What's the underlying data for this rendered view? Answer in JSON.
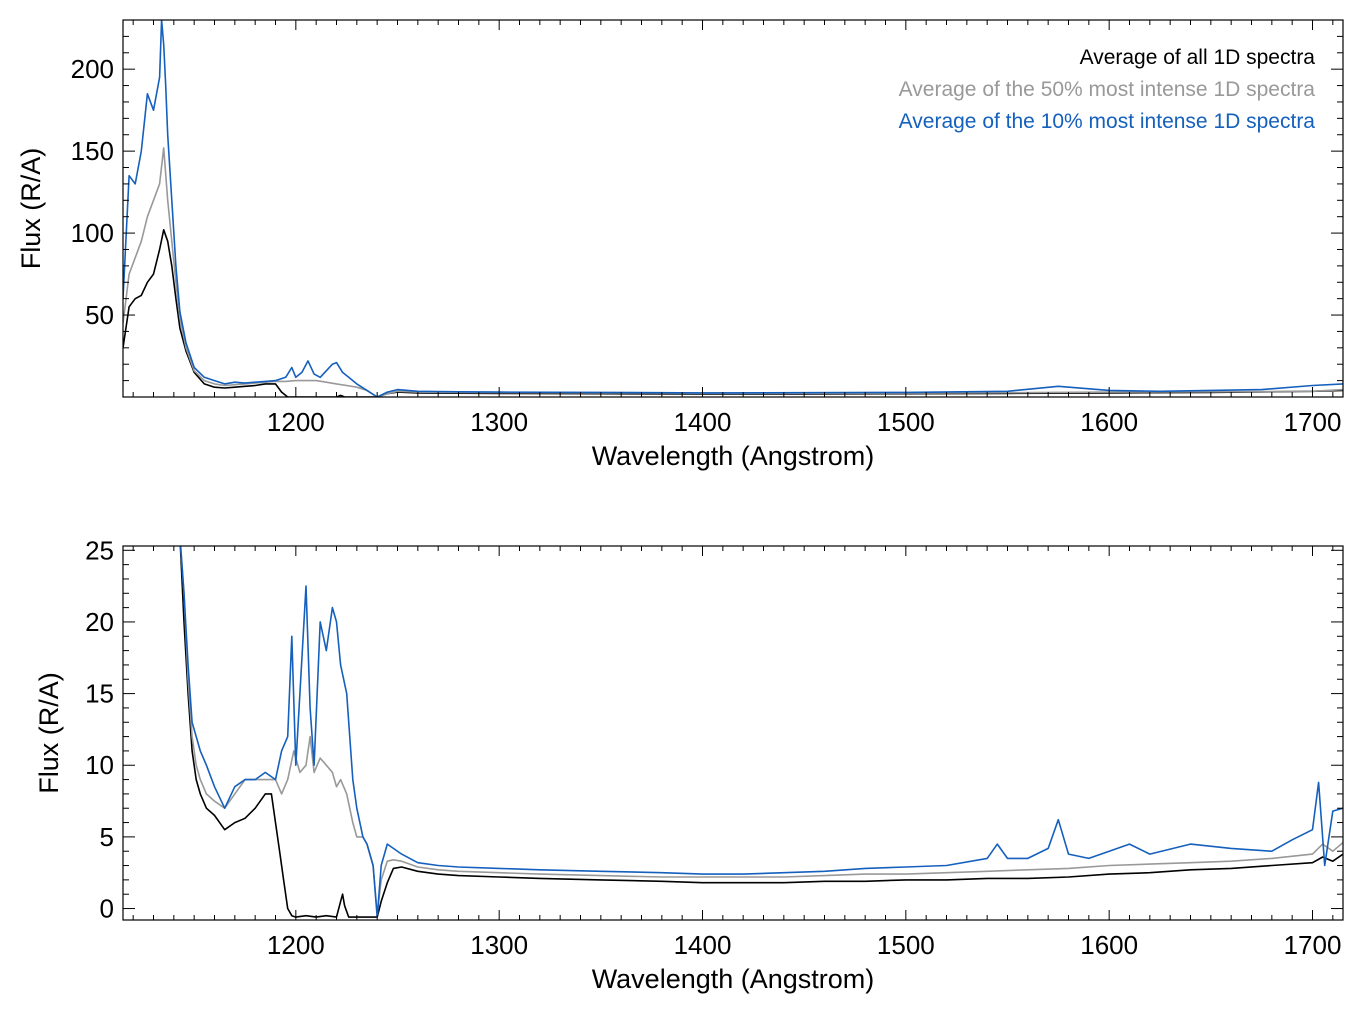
{
  "chart_data": [
    {
      "type": "line",
      "xlabel": "Wavelength (Angstrom)",
      "ylabel": "Flux (R/A)",
      "xlim": [
        1115,
        1715
      ],
      "ylim": [
        0,
        230
      ],
      "xticks": [
        1200,
        1300,
        1400,
        1500,
        1600,
        1700
      ],
      "yticks": [
        50,
        100,
        150,
        200
      ],
      "legend_position": "top-right",
      "grid": false,
      "series": [
        {
          "name": "Average of all 1D spectra",
          "color": "#000000",
          "x": [
            1115,
            1118,
            1121,
            1124,
            1127,
            1130,
            1133,
            1135,
            1137,
            1139,
            1141,
            1143,
            1146,
            1150,
            1155,
            1160,
            1165,
            1170,
            1175,
            1180,
            1185,
            1190,
            1193,
            1196,
            1200,
            1205,
            1210,
            1215,
            1220,
            1222,
            1224,
            1226,
            1230,
            1235,
            1240,
            1245,
            1250,
            1260,
            1280,
            1300,
            1350,
            1400,
            1450,
            1500,
            1550,
            1600,
            1650,
            1700,
            1715
          ],
          "y": [
            30,
            55,
            60,
            62,
            70,
            75,
            90,
            102,
            95,
            80,
            60,
            42,
            28,
            15,
            8,
            6,
            5.5,
            6,
            6.5,
            7,
            8,
            8,
            3,
            0,
            0,
            0,
            0,
            0,
            0,
            1,
            0,
            0,
            0,
            0,
            0,
            2,
            3,
            2.5,
            2.3,
            2.2,
            2.0,
            1.8,
            1.9,
            2.0,
            2.2,
            2.5,
            2.8,
            3.5,
            4.0
          ]
        },
        {
          "name": "Average of the 50% most intense 1D spectra",
          "color": "#999999",
          "x": [
            1115,
            1118,
            1121,
            1124,
            1127,
            1130,
            1133,
            1135,
            1137,
            1139,
            1141,
            1143,
            1146,
            1150,
            1155,
            1160,
            1165,
            1170,
            1175,
            1180,
            1185,
            1190,
            1195,
            1200,
            1205,
            1210,
            1215,
            1220,
            1225,
            1230,
            1235,
            1240,
            1245,
            1250,
            1260,
            1280,
            1300,
            1350,
            1400,
            1450,
            1500,
            1550,
            1600,
            1650,
            1700,
            1715
          ],
          "y": [
            45,
            75,
            85,
            95,
            110,
            120,
            130,
            152,
            120,
            95,
            70,
            48,
            30,
            16,
            10,
            8,
            7,
            7.5,
            8,
            8.5,
            9,
            9.5,
            9.5,
            10,
            10,
            10,
            9,
            8,
            7,
            6,
            4,
            0,
            2,
            3.5,
            3,
            2.8,
            2.7,
            2.5,
            2.3,
            2.3,
            2.4,
            2.6,
            3.0,
            3.2,
            3.5,
            4.5
          ]
        },
        {
          "name": "Average of the 10% most intense 1D spectra",
          "color": "#1560bd",
          "x": [
            1115,
            1118,
            1121,
            1124,
            1127,
            1130,
            1133,
            1134,
            1135,
            1136,
            1137,
            1139,
            1141,
            1143,
            1146,
            1150,
            1155,
            1160,
            1165,
            1170,
            1175,
            1180,
            1185,
            1190,
            1195,
            1198,
            1200,
            1203,
            1206,
            1209,
            1212,
            1215,
            1218,
            1220,
            1223,
            1226,
            1230,
            1235,
            1240,
            1245,
            1250,
            1260,
            1280,
            1300,
            1350,
            1400,
            1450,
            1500,
            1550,
            1575,
            1600,
            1625,
            1650,
            1675,
            1700,
            1715
          ],
          "y": [
            60,
            135,
            130,
            150,
            185,
            175,
            195,
            230,
            215,
            190,
            160,
            120,
            80,
            52,
            33,
            18,
            12,
            10,
            8,
            9,
            8.5,
            9,
            9.5,
            10,
            12,
            18,
            12,
            15,
            22,
            14,
            12,
            16,
            20,
            21,
            15,
            12,
            8,
            4,
            0,
            3,
            4.5,
            3.5,
            3.2,
            3.0,
            2.8,
            2.5,
            2.6,
            2.8,
            3.5,
            6.5,
            4,
            3.5,
            4,
            4.5,
            7,
            8
          ]
        }
      ]
    },
    {
      "type": "line",
      "xlabel": "Wavelength (Angstrom)",
      "ylabel": "Flux (R/A)",
      "xlim": [
        1115,
        1715
      ],
      "ylim": [
        -0.8,
        25.3
      ],
      "xticks": [
        1200,
        1300,
        1400,
        1500,
        1600,
        1700
      ],
      "yticks": [
        0,
        5,
        10,
        15,
        20,
        25
      ],
      "grid": false,
      "series": [
        {
          "name": "Average of all 1D spectra",
          "color": "#000000",
          "x": [
            1143,
            1145,
            1147,
            1149,
            1151,
            1153,
            1156,
            1160,
            1165,
            1170,
            1175,
            1180,
            1185,
            1188,
            1190,
            1192,
            1194,
            1196,
            1198,
            1200,
            1205,
            1210,
            1215,
            1220,
            1222,
            1223,
            1224,
            1226,
            1230,
            1235,
            1238,
            1240,
            1242,
            1245,
            1248,
            1252,
            1260,
            1270,
            1280,
            1300,
            1320,
            1350,
            1380,
            1400,
            1420,
            1440,
            1460,
            1480,
            1500,
            1520,
            1540,
            1560,
            1580,
            1600,
            1620,
            1640,
            1660,
            1680,
            1700,
            1705,
            1710,
            1715
          ],
          "y": [
            26,
            20,
            15,
            11,
            9,
            8,
            7,
            6.5,
            5.5,
            6,
            6.3,
            7,
            8,
            8,
            6,
            4,
            2,
            0,
            -0.5,
            -0.6,
            -0.5,
            -0.6,
            -0.5,
            -0.6,
            0.5,
            1,
            0.2,
            -0.6,
            -0.6,
            -0.6,
            -0.6,
            -0.6,
            0.5,
            1.8,
            2.8,
            2.9,
            2.6,
            2.4,
            2.3,
            2.2,
            2.1,
            2.0,
            1.9,
            1.8,
            1.8,
            1.8,
            1.9,
            1.9,
            2.0,
            2.0,
            2.1,
            2.1,
            2.2,
            2.4,
            2.5,
            2.7,
            2.8,
            3.0,
            3.2,
            3.6,
            3.3,
            3.8
          ]
        },
        {
          "name": "Average of the 50% most intense 1D spectra",
          "color": "#999999",
          "x": [
            1143,
            1145,
            1147,
            1149,
            1151,
            1153,
            1156,
            1160,
            1165,
            1170,
            1175,
            1180,
            1185,
            1190,
            1193,
            1196,
            1199,
            1202,
            1205,
            1207,
            1209,
            1212,
            1215,
            1218,
            1220,
            1222,
            1225,
            1228,
            1230,
            1233,
            1235,
            1238,
            1240,
            1242,
            1245,
            1248,
            1252,
            1260,
            1270,
            1280,
            1300,
            1320,
            1350,
            1380,
            1400,
            1420,
            1440,
            1460,
            1480,
            1500,
            1520,
            1540,
            1560,
            1580,
            1600,
            1620,
            1640,
            1660,
            1680,
            1700,
            1705,
            1710,
            1715
          ],
          "y": [
            26,
            22,
            16,
            12,
            10,
            9,
            8,
            7.5,
            7,
            8,
            9,
            9,
            9,
            9,
            8,
            9,
            11,
            9.5,
            10,
            12,
            9.5,
            10.5,
            10,
            9.5,
            8.5,
            9,
            8,
            6,
            5,
            5,
            4.5,
            3,
            -0.4,
            2,
            3.3,
            3.4,
            3.3,
            2.9,
            2.7,
            2.6,
            2.5,
            2.4,
            2.3,
            2.2,
            2.2,
            2.2,
            2.2,
            2.3,
            2.4,
            2.4,
            2.5,
            2.6,
            2.7,
            2.8,
            3.0,
            3.1,
            3.2,
            3.3,
            3.5,
            3.8,
            4.5,
            4.0,
            4.6
          ]
        },
        {
          "name": "Average of the 10% most intense 1D spectra",
          "color": "#1560bd",
          "x": [
            1143,
            1145,
            1147,
            1149,
            1151,
            1153,
            1156,
            1160,
            1165,
            1170,
            1175,
            1180,
            1185,
            1190,
            1193,
            1196,
            1198,
            1200,
            1202,
            1205,
            1207,
            1209,
            1212,
            1215,
            1218,
            1220,
            1222,
            1225,
            1228,
            1230,
            1233,
            1235,
            1238,
            1240,
            1242,
            1245,
            1248,
            1252,
            1260,
            1270,
            1280,
            1300,
            1320,
            1350,
            1380,
            1400,
            1420,
            1440,
            1460,
            1480,
            1500,
            1520,
            1540,
            1545,
            1550,
            1560,
            1570,
            1575,
            1580,
            1590,
            1600,
            1610,
            1620,
            1640,
            1660,
            1680,
            1690,
            1700,
            1703,
            1706,
            1710,
            1715
          ],
          "y": [
            26,
            22,
            17,
            13,
            12,
            11,
            10,
            8.5,
            7,
            8.5,
            9,
            9,
            9.5,
            9,
            11,
            12,
            19,
            10,
            15,
            22.5,
            14,
            10,
            20,
            18,
            21,
            20,
            17,
            15,
            9,
            7,
            5,
            4.5,
            3,
            -0.6,
            3,
            4.5,
            4.2,
            3.8,
            3.2,
            3.0,
            2.9,
            2.8,
            2.7,
            2.6,
            2.5,
            2.4,
            2.4,
            2.5,
            2.6,
            2.8,
            2.9,
            3.0,
            3.5,
            4.5,
            3.5,
            3.5,
            4.2,
            6.2,
            3.8,
            3.5,
            4.0,
            4.5,
            3.8,
            4.5,
            4.2,
            4.0,
            4.8,
            5.5,
            8.8,
            3.0,
            6.8,
            7.0
          ]
        }
      ]
    }
  ]
}
